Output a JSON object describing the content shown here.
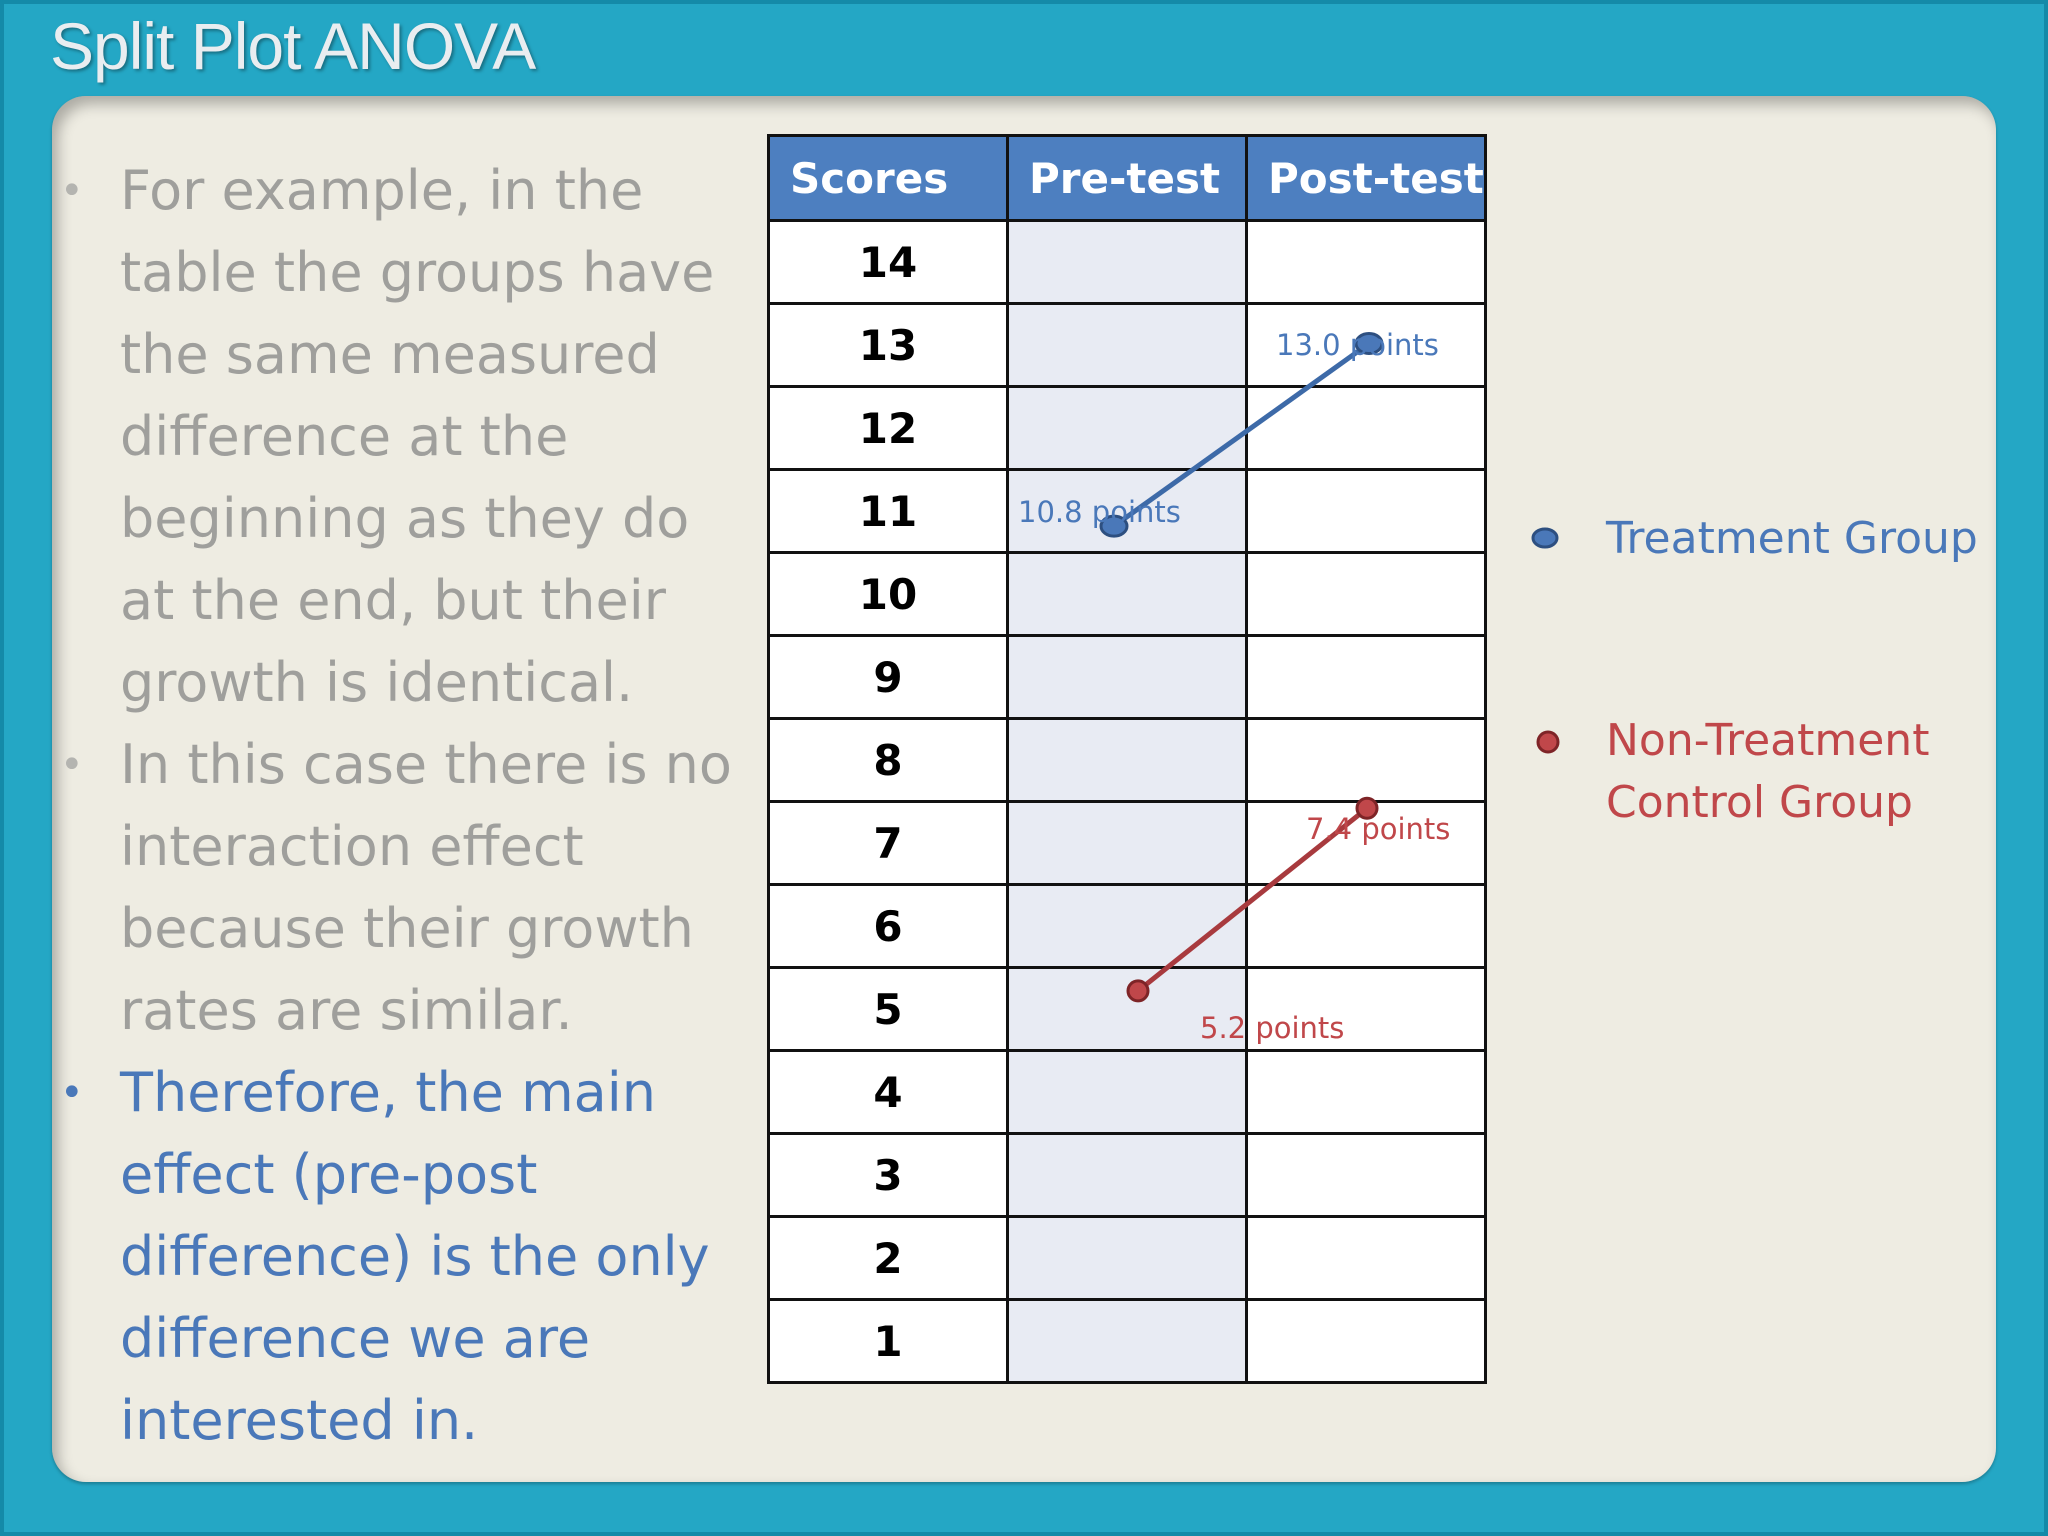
{
  "slide": {
    "title": "Split Plot ANOVA"
  },
  "bullets": [
    {
      "text": "For example, in the table the groups have the same measured difference at the beginning as they do at the end, but their growth is identical.",
      "style": "gray"
    },
    {
      "text": "In this case there is no interaction effect because their growth rates are similar.",
      "style": "gray"
    },
    {
      "text": "Therefore, the main effect (pre-post difference) is the only difference we are interested in.",
      "style": "blue"
    }
  ],
  "table": {
    "headers": [
      "Scores",
      "Pre-test",
      "Post-test"
    ],
    "scores": [
      "14",
      "13",
      "12",
      "11",
      "10",
      "9",
      "8",
      "7",
      "6",
      "5",
      "4",
      "3",
      "2",
      "1"
    ]
  },
  "groups": [
    {
      "name": "Treatment Group",
      "color": "#4a78b9",
      "pre_score": 10.8,
      "post_score": 13.0,
      "pre_label": "10.8 points",
      "post_label": "13.0 points"
    },
    {
      "name": "Non-Treatment Control Group",
      "color": "#c0474a",
      "pre_score": 5.2,
      "post_score": 7.4,
      "pre_label": "5.2 points",
      "post_label": "7.4 points"
    }
  ],
  "legend": {
    "treatment_label": "Treatment Group",
    "control_label_line1": "Non-Treatment",
    "control_label_line2": "Control Group"
  }
}
